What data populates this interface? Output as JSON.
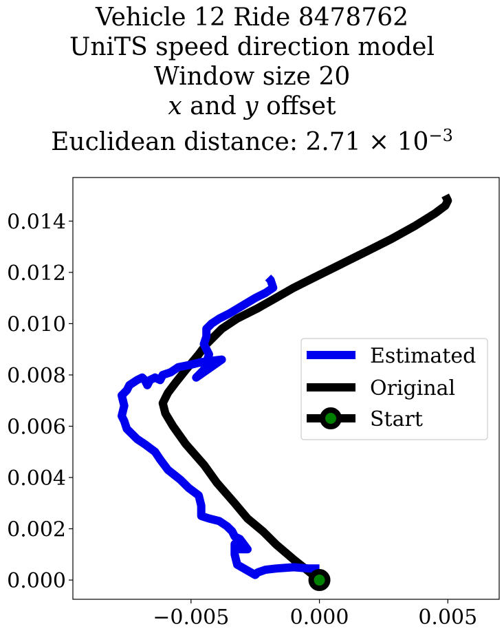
{
  "title": {
    "line1": "Vehicle 12 Ride 8478762",
    "line2": "UniTS speed direction model",
    "line3": "Window size 20",
    "line4_x": "x",
    "line4_and": " and ",
    "line4_y": "y",
    "line4_rest": " offset",
    "line5_prefix": "Euclidean distance: ",
    "line5_mantissa": "2.71",
    "line5_times": " × ",
    "line5_base": "10",
    "line5_exp": "−3"
  },
  "colors": {
    "estimated": "#0000ee",
    "original": "#000000",
    "start_marker_fill": "#008000",
    "axis": "#000000"
  },
  "chart_data": {
    "type": "line",
    "xlim": [
      -0.0096,
      0.007
    ],
    "ylim": [
      -0.00075,
      0.0157
    ],
    "xticks": [
      -0.005,
      0.0,
      0.005
    ],
    "xtick_labels": [
      "−0.005",
      "0.000",
      "0.005"
    ],
    "yticks": [
      0.0,
      0.002,
      0.004,
      0.006,
      0.008,
      0.01,
      0.012,
      0.014
    ],
    "ytick_labels": [
      "0.000",
      "0.002",
      "0.004",
      "0.006",
      "0.008",
      "0.010",
      "0.012",
      "0.014"
    ],
    "legend_position": "center-right",
    "grid": false,
    "series": [
      {
        "name": "Estimated",
        "color": "#0000ee",
        "x": [
          0.0,
          -0.0004,
          -0.001,
          -0.0017,
          -0.0021,
          -0.0024,
          -0.0025,
          -0.0032,
          -0.0033,
          -0.0033,
          -0.0032,
          -0.0031,
          -0.0028,
          -0.0031,
          -0.0033,
          -0.0034,
          -0.0036,
          -0.0039,
          -0.0043,
          -0.0046,
          -0.0046,
          -0.0047,
          -0.0051,
          -0.0054,
          -0.0059,
          -0.0062,
          -0.0064,
          -0.0068,
          -0.0071,
          -0.0075,
          -0.0076,
          -0.0077,
          -0.0076,
          -0.0077,
          -0.0075,
          -0.0074,
          -0.0071,
          -0.0069,
          -0.0068,
          -0.0067,
          -0.0066,
          -0.0064,
          -0.0062,
          -0.0061,
          -0.0058,
          -0.0055,
          -0.005,
          -0.0046,
          -0.0038,
          -0.0048,
          -0.0045,
          -0.0043,
          -0.0045,
          -0.0044,
          -0.0044,
          -0.0043,
          -0.0042,
          -0.0039,
          -0.0035,
          -0.003,
          -0.0025,
          -0.0021,
          -0.0018,
          -0.0019,
          -0.002
        ],
        "y": [
          0.00045,
          0.00045,
          0.0005,
          0.00045,
          0.0004,
          0.0003,
          0.0002,
          0.0006,
          0.001,
          0.0014,
          0.0015,
          0.0012,
          0.0012,
          0.0016,
          0.0017,
          0.0019,
          0.0021,
          0.0023,
          0.0024,
          0.0025,
          0.0029,
          0.0033,
          0.0036,
          0.0039,
          0.0043,
          0.0047,
          0.005,
          0.0053,
          0.0055,
          0.0059,
          0.0062,
          0.0064,
          0.0068,
          0.0072,
          0.0074,
          0.0076,
          0.0078,
          0.0079,
          0.0078,
          0.0076,
          0.0078,
          0.0079,
          0.0078,
          0.008,
          0.0081,
          0.0083,
          0.0084,
          0.0085,
          0.0086,
          0.0079,
          0.0082,
          0.0088,
          0.0092,
          0.0095,
          0.0098,
          0.0099,
          0.01,
          0.0102,
          0.0104,
          0.0107,
          0.011,
          0.0112,
          0.0114,
          0.0117,
          0.0118
        ]
      },
      {
        "name": "Original",
        "color": "#000000",
        "x": [
          0.0,
          -0.0005,
          -0.001,
          -0.0017,
          -0.0022,
          -0.0028,
          -0.0033,
          -0.004,
          -0.0045,
          -0.0052,
          -0.0057,
          -0.006,
          -0.0061,
          -0.0059,
          -0.0056,
          -0.0052,
          -0.0047,
          -0.0044,
          -0.0038,
          -0.0032,
          -0.0024,
          -0.0017,
          -0.001,
          -0.0002,
          0.0008,
          0.0018,
          0.0028,
          0.0037,
          0.0045,
          0.0049,
          0.005,
          0.0049
        ],
        "y": [
          0.0,
          0.0004,
          0.0008,
          0.0014,
          0.0019,
          0.0024,
          0.003,
          0.0038,
          0.0045,
          0.0053,
          0.006,
          0.0065,
          0.0069,
          0.0073,
          0.0077,
          0.0082,
          0.0088,
          0.0092,
          0.0098,
          0.0102,
          0.0106,
          0.011,
          0.0114,
          0.0118,
          0.0123,
          0.0128,
          0.0133,
          0.0138,
          0.0143,
          0.0146,
          0.0148,
          0.015
        ]
      },
      {
        "name": "Start",
        "color": "#000000",
        "marker_fill": "#008000",
        "x": [
          0.0
        ],
        "y": [
          0.0
        ]
      }
    ]
  }
}
